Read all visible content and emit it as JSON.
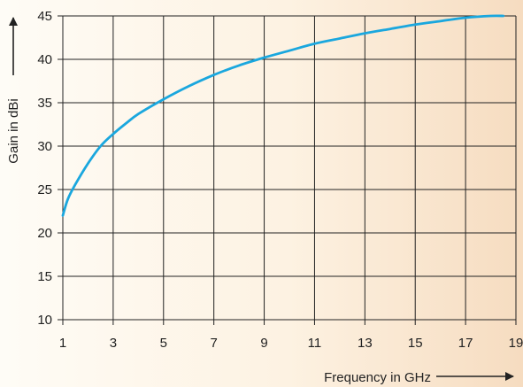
{
  "chart_data": {
    "type": "line",
    "xlabel": "Frequency in GHz",
    "ylabel": "Gain in dBi",
    "xlim": [
      1,
      19
    ],
    "ylim": [
      10,
      45
    ],
    "x_ticks": [
      1,
      3,
      5,
      7,
      9,
      11,
      13,
      15,
      17,
      19
    ],
    "y_ticks": [
      10,
      15,
      20,
      25,
      30,
      35,
      40,
      45
    ],
    "grid": true,
    "colors": {
      "curve": "#1aa7de",
      "grid": "#222222",
      "axis": "#222222"
    },
    "series": [
      {
        "x": [
          1.0,
          1.2,
          1.5,
          2.0,
          2.5,
          3.0,
          3.5,
          4.0,
          5.0,
          6.0,
          7.0,
          8.0,
          9.0,
          10.0,
          11.0,
          12.0,
          13.0,
          14.0,
          15.0,
          16.0,
          17.0,
          18.0,
          18.5
        ],
        "y": [
          22.0,
          23.9,
          25.6,
          28.0,
          30.0,
          31.4,
          32.6,
          33.7,
          35.4,
          36.9,
          38.2,
          39.3,
          40.2,
          41.0,
          41.8,
          42.4,
          43.0,
          43.5,
          44.0,
          44.4,
          44.8,
          45.0,
          45.0
        ]
      }
    ]
  }
}
